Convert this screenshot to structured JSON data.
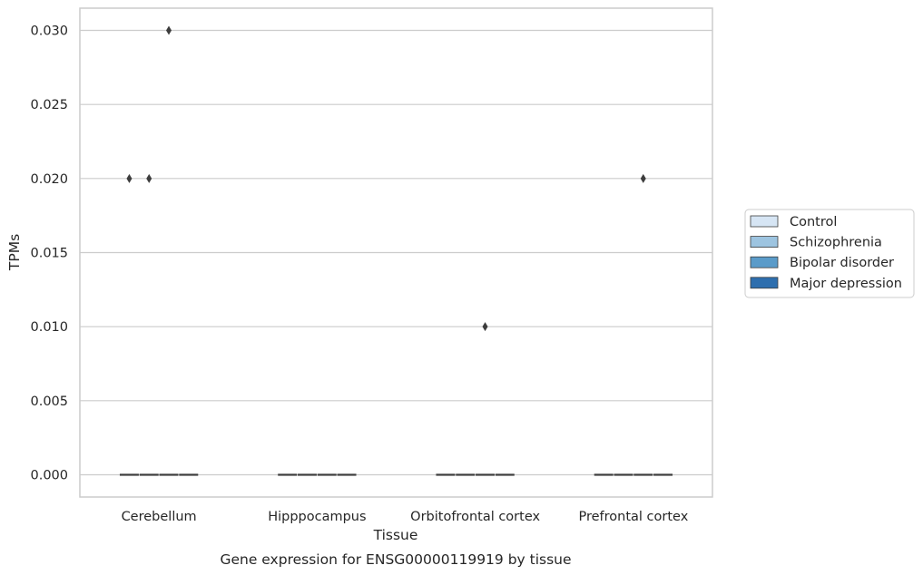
{
  "chart_data": {
    "type": "box",
    "caption": "Gene expression for ENSG00000119919 by tissue",
    "xlabel": "Tissue",
    "ylabel": "TPMs",
    "ylim": [
      -0.0015,
      0.0315
    ],
    "yticks": [
      0.0,
      0.005,
      0.01,
      0.015,
      0.02,
      0.025,
      0.03
    ],
    "ytick_labels": [
      "0.000",
      "0.005",
      "0.010",
      "0.015",
      "0.020",
      "0.025",
      "0.030"
    ],
    "grid": true,
    "legend_position": "right",
    "categories": [
      "Cerebellum",
      "Hipppocampus",
      "Orbitofrontal cortex",
      "Prefrontal cortex"
    ],
    "series": [
      {
        "name": "Control",
        "color": "#d6e5f4",
        "boxes": [
          {
            "median": 0,
            "q1": 0,
            "q3": 0,
            "whisker_low": 0,
            "whisker_high": 0,
            "outliers": [
              0.02
            ]
          },
          {
            "median": 0,
            "q1": 0,
            "q3": 0,
            "whisker_low": 0,
            "whisker_high": 0,
            "outliers": []
          },
          {
            "median": 0,
            "q1": 0,
            "q3": 0,
            "whisker_low": 0,
            "whisker_high": 0,
            "outliers": []
          },
          {
            "median": 0,
            "q1": 0,
            "q3": 0,
            "whisker_low": 0,
            "whisker_high": 0,
            "outliers": []
          }
        ]
      },
      {
        "name": "Schizophrenia",
        "color": "#9dc4e0",
        "boxes": [
          {
            "median": 0,
            "q1": 0,
            "q3": 0,
            "whisker_low": 0,
            "whisker_high": 0,
            "outliers": [
              0.02
            ]
          },
          {
            "median": 0,
            "q1": 0,
            "q3": 0,
            "whisker_low": 0,
            "whisker_high": 0,
            "outliers": []
          },
          {
            "median": 0,
            "q1": 0,
            "q3": 0,
            "whisker_low": 0,
            "whisker_high": 0,
            "outliers": []
          },
          {
            "median": 0,
            "q1": 0,
            "q3": 0,
            "whisker_low": 0,
            "whisker_high": 0,
            "outliers": []
          }
        ]
      },
      {
        "name": "Bipolar disorder",
        "color": "#5a9bc9",
        "boxes": [
          {
            "median": 0,
            "q1": 0,
            "q3": 0,
            "whisker_low": 0,
            "whisker_high": 0,
            "outliers": [
              0.03
            ]
          },
          {
            "median": 0,
            "q1": 0,
            "q3": 0,
            "whisker_low": 0,
            "whisker_high": 0,
            "outliers": []
          },
          {
            "median": 0,
            "q1": 0,
            "q3": 0,
            "whisker_low": 0,
            "whisker_high": 0,
            "outliers": [
              0.01
            ]
          },
          {
            "median": 0,
            "q1": 0,
            "q3": 0,
            "whisker_low": 0,
            "whisker_high": 0,
            "outliers": [
              0.02
            ]
          }
        ]
      },
      {
        "name": "Major depression",
        "color": "#2d6eae",
        "boxes": [
          {
            "median": 0,
            "q1": 0,
            "q3": 0,
            "whisker_low": 0,
            "whisker_high": 0,
            "outliers": []
          },
          {
            "median": 0,
            "q1": 0,
            "q3": 0,
            "whisker_low": 0,
            "whisker_high": 0,
            "outliers": []
          },
          {
            "median": 0,
            "q1": 0,
            "q3": 0,
            "whisker_low": 0,
            "whisker_high": 0,
            "outliers": []
          },
          {
            "median": 0,
            "q1": 0,
            "q3": 0,
            "whisker_low": 0,
            "whisker_high": 0,
            "outliers": []
          }
        ]
      }
    ],
    "colors": {
      "grid": "#cccccc",
      "frame": "#cccccc",
      "box_edge": "#3d3d3d",
      "outlier": "#3d3d3d"
    }
  }
}
